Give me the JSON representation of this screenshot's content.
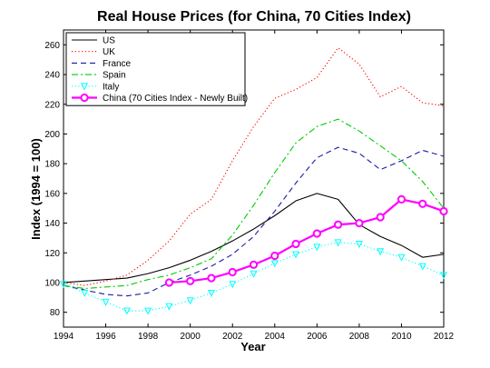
{
  "chart_data": {
    "type": "line",
    "title": "Real House Prices (for China, 70 Cities Index)",
    "xlabel": "Year",
    "ylabel": "Index (1994 = 100)",
    "xlim": [
      1994,
      2012
    ],
    "ylim": [
      70,
      270
    ],
    "xticks": [
      "1994",
      "1996",
      "1998",
      "2000",
      "2002",
      "2004",
      "2006",
      "2008",
      "2010",
      "2012"
    ],
    "yticks": [
      "80",
      "100",
      "120",
      "140",
      "160",
      "180",
      "200",
      "220",
      "240",
      "260"
    ],
    "grid": false,
    "legend_position": "top-left",
    "series": [
      {
        "name": "US",
        "color": "#000000",
        "line_style": "solid",
        "marker": "none",
        "x": [
          1994,
          1995,
          1996,
          1997,
          1998,
          1999,
          2000,
          2001,
          2002,
          2003,
          2004,
          2005,
          2006,
          2007,
          2008,
          2009,
          2010,
          2011,
          2012
        ],
        "values": [
          100,
          101,
          102,
          103,
          106,
          110,
          115,
          121,
          128,
          136,
          145,
          155,
          160,
          156,
          139,
          131,
          125,
          117,
          119
        ]
      },
      {
        "name": "UK",
        "color": "#ff0000",
        "line_style": "dotted",
        "marker": "none",
        "x": [
          1994,
          1995,
          1996,
          1997,
          1998,
          1999,
          2000,
          2001,
          2002,
          2003,
          2004,
          2005,
          2006,
          2007,
          2008,
          2009,
          2010,
          2011,
          2012
        ],
        "values": [
          100,
          98,
          101,
          105,
          115,
          128,
          146,
          156,
          182,
          205,
          224,
          230,
          238,
          258,
          247,
          225,
          232,
          221,
          219
        ]
      },
      {
        "name": "France",
        "color": "#1a1aa8",
        "line_style": "dashed",
        "marker": "none",
        "x": [
          1994,
          1995,
          1996,
          1997,
          1998,
          1999,
          2000,
          2001,
          2002,
          2003,
          2004,
          2005,
          2006,
          2007,
          2008,
          2009,
          2010,
          2011,
          2012
        ],
        "values": [
          98,
          95,
          92,
          91,
          93,
          100,
          105,
          111,
          119,
          131,
          148,
          167,
          184,
          191,
          187,
          176,
          182,
          189,
          185
        ]
      },
      {
        "name": "Spain",
        "color": "#00cc00",
        "line_style": "dashdot",
        "marker": "none",
        "x": [
          1994,
          1995,
          1996,
          1997,
          1998,
          1999,
          2000,
          2001,
          2002,
          2003,
          2004,
          2005,
          2006,
          2007,
          2008,
          2009,
          2010,
          2011,
          2012
        ],
        "values": [
          98,
          96,
          97,
          98,
          102,
          105,
          110,
          116,
          132,
          152,
          174,
          194,
          205,
          210,
          202,
          192,
          182,
          168,
          150
        ]
      },
      {
        "name": "Italy",
        "color": "#00ffff",
        "line_style": "dotted",
        "marker": "triangle-down",
        "x": [
          1994,
          1995,
          1996,
          1997,
          1998,
          1999,
          2000,
          2001,
          2002,
          2003,
          2004,
          2005,
          2006,
          2007,
          2008,
          2009,
          2010,
          2011,
          2012
        ],
        "values": [
          99,
          93,
          87,
          81,
          81,
          84,
          88,
          93,
          99,
          106,
          113,
          119,
          124,
          127,
          126,
          121,
          117,
          111,
          105
        ]
      },
      {
        "name": "China (70 Cities Index - Newly Built)",
        "color": "#ff00ff",
        "line_style": "solid",
        "marker": "circle",
        "x": [
          1999,
          2000,
          2001,
          2002,
          2003,
          2004,
          2005,
          2006,
          2007,
          2008,
          2009,
          2010,
          2011,
          2012
        ],
        "values": [
          100,
          101,
          103,
          107,
          112,
          118,
          126,
          133,
          139,
          140,
          144,
          156,
          153,
          148
        ]
      }
    ]
  }
}
